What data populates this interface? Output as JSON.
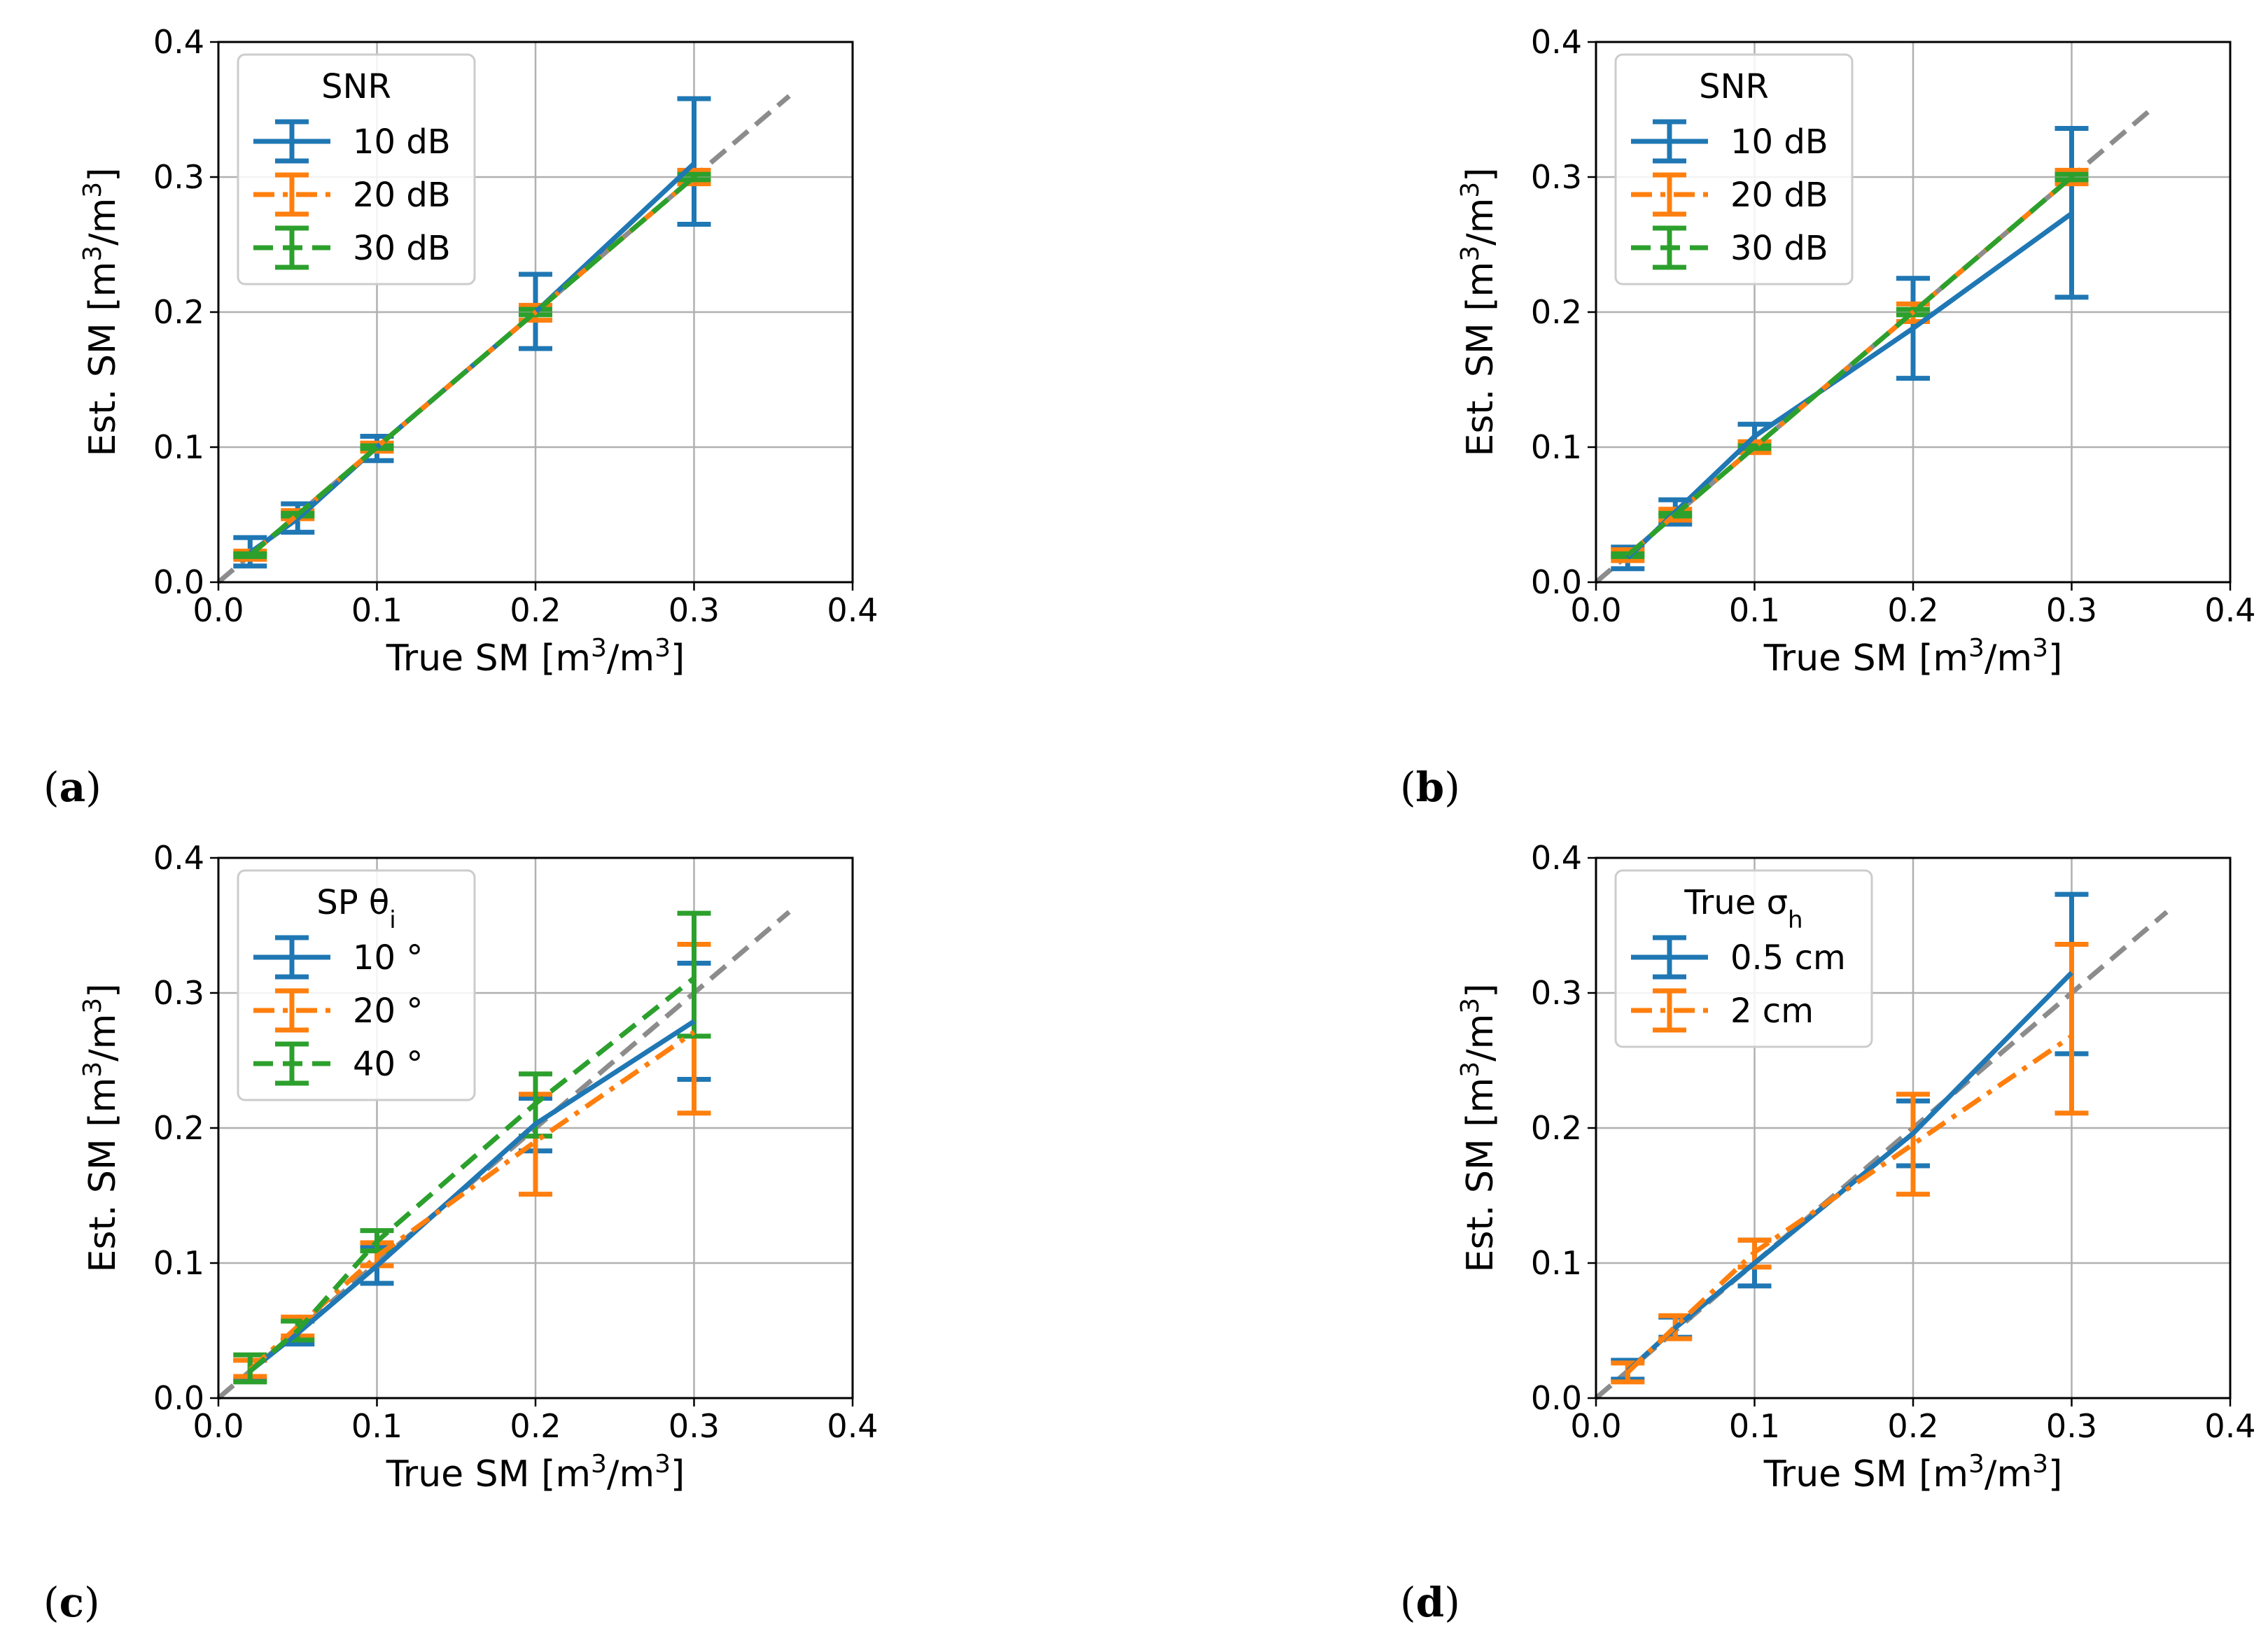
{
  "colors": {
    "blue": "#1f77b4",
    "orange": "#ff7f0e",
    "green": "#2ca02c",
    "reference": "#8c8c8c",
    "grid": "#b0b0b0"
  },
  "chart_data": [
    {
      "panel_label": "a",
      "type": "line",
      "xlabel": "True SM [m³/m³]",
      "ylabel": "Est. SM [m³/m³]",
      "xlim": [
        0.0,
        0.4
      ],
      "ylim": [
        0.0,
        0.4
      ],
      "xticks": [
        "0.0",
        "0.1",
        "0.2",
        "0.3",
        "0.4"
      ],
      "yticks": [
        "0.0",
        "0.1",
        "0.2",
        "0.3",
        "0.4"
      ],
      "grid": true,
      "reference_line": {
        "x": [
          0.0,
          0.36
        ],
        "y": [
          0.0,
          0.36
        ],
        "style": "dashed"
      },
      "legend": {
        "title": "SNR",
        "title_sub": "",
        "placement": "top-left"
      },
      "series": [
        {
          "name": "10 dB",
          "color": "blue",
          "style": "solid",
          "x": [
            0.02,
            0.05,
            0.1,
            0.2,
            0.3
          ],
          "y": [
            0.022,
            0.047,
            0.1,
            0.2,
            0.31
          ],
          "yerr_low": [
            0.012,
            0.037,
            0.09,
            0.173,
            0.265
          ],
          "yerr_high": [
            0.033,
            0.058,
            0.108,
            0.228,
            0.358
          ]
        },
        {
          "name": "20 dB",
          "color": "orange",
          "style": "dashdot",
          "x": [
            0.02,
            0.05,
            0.1,
            0.2,
            0.3
          ],
          "y": [
            0.02,
            0.05,
            0.1,
            0.2,
            0.3
          ],
          "yerr_low": [
            0.017,
            0.047,
            0.097,
            0.194,
            0.295
          ],
          "yerr_high": [
            0.023,
            0.053,
            0.103,
            0.205,
            0.305
          ]
        },
        {
          "name": "30 dB",
          "color": "green",
          "style": "dashed",
          "x": [
            0.02,
            0.05,
            0.1,
            0.2,
            0.3
          ],
          "y": [
            0.02,
            0.05,
            0.1,
            0.2,
            0.3
          ],
          "yerr_low": [
            0.019,
            0.049,
            0.099,
            0.198,
            0.298
          ],
          "yerr_high": [
            0.021,
            0.051,
            0.101,
            0.202,
            0.302
          ]
        }
      ]
    },
    {
      "panel_label": "b",
      "type": "line",
      "xlabel": "True SM [m³/m³]",
      "ylabel": "Est. SM [m³/m³]",
      "xlim": [
        0.0,
        0.4
      ],
      "ylim": [
        0.0,
        0.4
      ],
      "xticks": [
        "0.0",
        "0.1",
        "0.2",
        "0.3",
        "0.4"
      ],
      "yticks": [
        "0.0",
        "0.1",
        "0.2",
        "0.3",
        "0.4"
      ],
      "grid": true,
      "reference_line": {
        "x": [
          0.0,
          0.35
        ],
        "y": [
          0.0,
          0.35
        ],
        "style": "dashed"
      },
      "legend": {
        "title": "SNR",
        "title_sub": "",
        "placement": "top-left"
      },
      "series": [
        {
          "name": "10 dB",
          "color": "blue",
          "style": "solid",
          "x": [
            0.02,
            0.05,
            0.1,
            0.2,
            0.3
          ],
          "y": [
            0.018,
            0.052,
            0.108,
            0.188,
            0.273
          ],
          "yerr_low": [
            0.01,
            0.043,
            0.1,
            0.151,
            0.211
          ],
          "yerr_high": [
            0.026,
            0.061,
            0.117,
            0.225,
            0.336
          ]
        },
        {
          "name": "20 dB",
          "color": "orange",
          "style": "dashdot",
          "x": [
            0.02,
            0.05,
            0.1,
            0.2,
            0.3
          ],
          "y": [
            0.02,
            0.05,
            0.1,
            0.2,
            0.3
          ],
          "yerr_low": [
            0.016,
            0.046,
            0.096,
            0.193,
            0.295
          ],
          "yerr_high": [
            0.024,
            0.054,
            0.104,
            0.206,
            0.305
          ]
        },
        {
          "name": "30 dB",
          "color": "green",
          "style": "dashed",
          "x": [
            0.02,
            0.05,
            0.1,
            0.2,
            0.3
          ],
          "y": [
            0.02,
            0.05,
            0.1,
            0.2,
            0.3
          ],
          "yerr_low": [
            0.019,
            0.049,
            0.099,
            0.198,
            0.298
          ],
          "yerr_high": [
            0.021,
            0.051,
            0.101,
            0.202,
            0.302
          ]
        }
      ]
    },
    {
      "panel_label": "c",
      "type": "line",
      "xlabel": "True SM [m³/m³]",
      "ylabel": "Est. SM [m³/m³]",
      "xlim": [
        0.0,
        0.4
      ],
      "ylim": [
        0.0,
        0.4
      ],
      "xticks": [
        "0.0",
        "0.1",
        "0.2",
        "0.3",
        "0.4"
      ],
      "yticks": [
        "0.0",
        "0.1",
        "0.2",
        "0.3",
        "0.4"
      ],
      "grid": true,
      "reference_line": {
        "x": [
          0.0,
          0.36
        ],
        "y": [
          0.0,
          0.36
        ],
        "style": "dashed"
      },
      "legend": {
        "title": "SP θ",
        "title_sub": "i",
        "placement": "top-left"
      },
      "series": [
        {
          "name": "10 °",
          "color": "blue",
          "style": "solid",
          "x": [
            0.02,
            0.05,
            0.1,
            0.2,
            0.3
          ],
          "y": [
            0.02,
            0.048,
            0.098,
            0.203,
            0.279
          ],
          "yerr_low": [
            0.014,
            0.04,
            0.085,
            0.183,
            0.236
          ],
          "yerr_high": [
            0.028,
            0.057,
            0.112,
            0.222,
            0.322
          ]
        },
        {
          "name": "20 °",
          "color": "orange",
          "style": "dashdot",
          "x": [
            0.02,
            0.05,
            0.1,
            0.2,
            0.3
          ],
          "y": [
            0.021,
            0.053,
            0.105,
            0.19,
            0.271
          ],
          "yerr_low": [
            0.016,
            0.046,
            0.098,
            0.151,
            0.211
          ],
          "yerr_high": [
            0.028,
            0.06,
            0.115,
            0.225,
            0.336
          ]
        },
        {
          "name": "40 °",
          "color": "green",
          "style": "dashed",
          "x": [
            0.02,
            0.05,
            0.1,
            0.2,
            0.3
          ],
          "y": [
            0.02,
            0.05,
            0.116,
            0.218,
            0.311
          ],
          "yerr_low": [
            0.012,
            0.043,
            0.109,
            0.194,
            0.268
          ],
          "yerr_high": [
            0.032,
            0.057,
            0.124,
            0.24,
            0.359
          ]
        }
      ]
    },
    {
      "panel_label": "d",
      "type": "line",
      "xlabel": "True SM [m³/m³]",
      "ylabel": "Est. SM [m³/m³]",
      "xlim": [
        0.0,
        0.4
      ],
      "ylim": [
        0.0,
        0.4
      ],
      "xticks": [
        "0.0",
        "0.1",
        "0.2",
        "0.3",
        "0.4"
      ],
      "yticks": [
        "0.0",
        "0.1",
        "0.2",
        "0.3",
        "0.4"
      ],
      "grid": true,
      "reference_line": {
        "x": [
          0.0,
          0.36
        ],
        "y": [
          0.0,
          0.36
        ],
        "style": "dashed"
      },
      "legend": {
        "title": "True σ",
        "title_sub": "h",
        "placement": "top-left"
      },
      "series": [
        {
          "name": "0.5 cm",
          "color": "blue",
          "style": "solid",
          "x": [
            0.02,
            0.05,
            0.1,
            0.2,
            0.3
          ],
          "y": [
            0.02,
            0.052,
            0.1,
            0.196,
            0.315
          ],
          "yerr_low": [
            0.014,
            0.045,
            0.083,
            0.172,
            0.255
          ],
          "yerr_high": [
            0.028,
            0.06,
            0.117,
            0.22,
            0.373
          ]
        },
        {
          "name": "2 cm",
          "color": "orange",
          "style": "dashdot",
          "x": [
            0.02,
            0.05,
            0.1,
            0.2,
            0.3
          ],
          "y": [
            0.019,
            0.053,
            0.108,
            0.188,
            0.268
          ],
          "yerr_low": [
            0.012,
            0.044,
            0.097,
            0.151,
            0.211
          ],
          "yerr_high": [
            0.026,
            0.061,
            0.117,
            0.225,
            0.336
          ]
        }
      ]
    }
  ]
}
